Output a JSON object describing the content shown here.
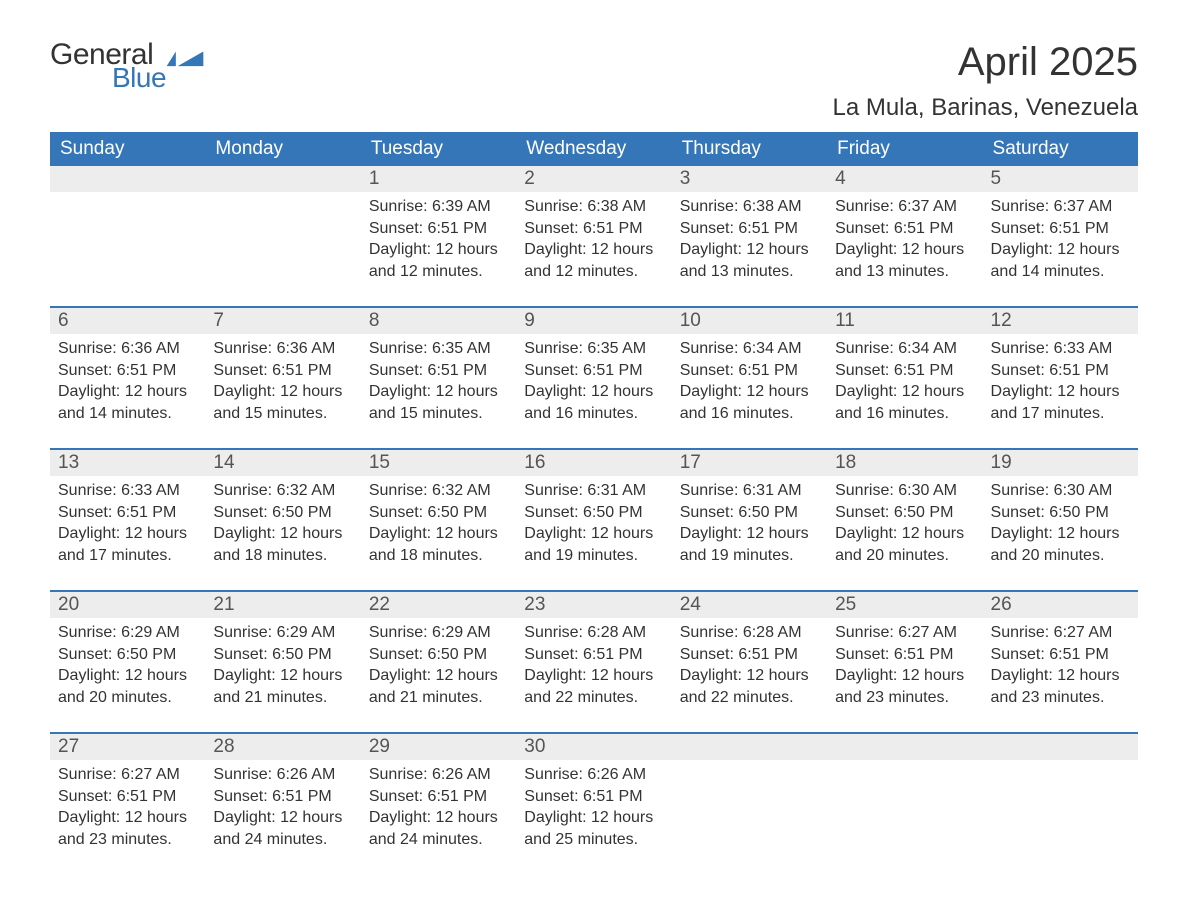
{
  "brand": {
    "line1": "General",
    "line2": "Blue",
    "flag_color": "#3576b8"
  },
  "title": "April 2025",
  "location": "La Mula, Barinas, Venezuela",
  "colors": {
    "header_bg": "#3576b8",
    "header_text": "#ffffff",
    "daynum_bg": "#ededed",
    "text": "#333333",
    "week_border": "#3576b8",
    "background": "#ffffff"
  },
  "day_headers": [
    "Sunday",
    "Monday",
    "Tuesday",
    "Wednesday",
    "Thursday",
    "Friday",
    "Saturday"
  ],
  "weeks": [
    [
      {
        "num": "",
        "sunrise": "",
        "sunset": "",
        "daylight1": "",
        "daylight2": ""
      },
      {
        "num": "",
        "sunrise": "",
        "sunset": "",
        "daylight1": "",
        "daylight2": ""
      },
      {
        "num": "1",
        "sunrise": "Sunrise: 6:39 AM",
        "sunset": "Sunset: 6:51 PM",
        "daylight1": "Daylight: 12 hours",
        "daylight2": "and 12 minutes."
      },
      {
        "num": "2",
        "sunrise": "Sunrise: 6:38 AM",
        "sunset": "Sunset: 6:51 PM",
        "daylight1": "Daylight: 12 hours",
        "daylight2": "and 12 minutes."
      },
      {
        "num": "3",
        "sunrise": "Sunrise: 6:38 AM",
        "sunset": "Sunset: 6:51 PM",
        "daylight1": "Daylight: 12 hours",
        "daylight2": "and 13 minutes."
      },
      {
        "num": "4",
        "sunrise": "Sunrise: 6:37 AM",
        "sunset": "Sunset: 6:51 PM",
        "daylight1": "Daylight: 12 hours",
        "daylight2": "and 13 minutes."
      },
      {
        "num": "5",
        "sunrise": "Sunrise: 6:37 AM",
        "sunset": "Sunset: 6:51 PM",
        "daylight1": "Daylight: 12 hours",
        "daylight2": "and 14 minutes."
      }
    ],
    [
      {
        "num": "6",
        "sunrise": "Sunrise: 6:36 AM",
        "sunset": "Sunset: 6:51 PM",
        "daylight1": "Daylight: 12 hours",
        "daylight2": "and 14 minutes."
      },
      {
        "num": "7",
        "sunrise": "Sunrise: 6:36 AM",
        "sunset": "Sunset: 6:51 PM",
        "daylight1": "Daylight: 12 hours",
        "daylight2": "and 15 minutes."
      },
      {
        "num": "8",
        "sunrise": "Sunrise: 6:35 AM",
        "sunset": "Sunset: 6:51 PM",
        "daylight1": "Daylight: 12 hours",
        "daylight2": "and 15 minutes."
      },
      {
        "num": "9",
        "sunrise": "Sunrise: 6:35 AM",
        "sunset": "Sunset: 6:51 PM",
        "daylight1": "Daylight: 12 hours",
        "daylight2": "and 16 minutes."
      },
      {
        "num": "10",
        "sunrise": "Sunrise: 6:34 AM",
        "sunset": "Sunset: 6:51 PM",
        "daylight1": "Daylight: 12 hours",
        "daylight2": "and 16 minutes."
      },
      {
        "num": "11",
        "sunrise": "Sunrise: 6:34 AM",
        "sunset": "Sunset: 6:51 PM",
        "daylight1": "Daylight: 12 hours",
        "daylight2": "and 16 minutes."
      },
      {
        "num": "12",
        "sunrise": "Sunrise: 6:33 AM",
        "sunset": "Sunset: 6:51 PM",
        "daylight1": "Daylight: 12 hours",
        "daylight2": "and 17 minutes."
      }
    ],
    [
      {
        "num": "13",
        "sunrise": "Sunrise: 6:33 AM",
        "sunset": "Sunset: 6:51 PM",
        "daylight1": "Daylight: 12 hours",
        "daylight2": "and 17 minutes."
      },
      {
        "num": "14",
        "sunrise": "Sunrise: 6:32 AM",
        "sunset": "Sunset: 6:50 PM",
        "daylight1": "Daylight: 12 hours",
        "daylight2": "and 18 minutes."
      },
      {
        "num": "15",
        "sunrise": "Sunrise: 6:32 AM",
        "sunset": "Sunset: 6:50 PM",
        "daylight1": "Daylight: 12 hours",
        "daylight2": "and 18 minutes."
      },
      {
        "num": "16",
        "sunrise": "Sunrise: 6:31 AM",
        "sunset": "Sunset: 6:50 PM",
        "daylight1": "Daylight: 12 hours",
        "daylight2": "and 19 minutes."
      },
      {
        "num": "17",
        "sunrise": "Sunrise: 6:31 AM",
        "sunset": "Sunset: 6:50 PM",
        "daylight1": "Daylight: 12 hours",
        "daylight2": "and 19 minutes."
      },
      {
        "num": "18",
        "sunrise": "Sunrise: 6:30 AM",
        "sunset": "Sunset: 6:50 PM",
        "daylight1": "Daylight: 12 hours",
        "daylight2": "and 20 minutes."
      },
      {
        "num": "19",
        "sunrise": "Sunrise: 6:30 AM",
        "sunset": "Sunset: 6:50 PM",
        "daylight1": "Daylight: 12 hours",
        "daylight2": "and 20 minutes."
      }
    ],
    [
      {
        "num": "20",
        "sunrise": "Sunrise: 6:29 AM",
        "sunset": "Sunset: 6:50 PM",
        "daylight1": "Daylight: 12 hours",
        "daylight2": "and 20 minutes."
      },
      {
        "num": "21",
        "sunrise": "Sunrise: 6:29 AM",
        "sunset": "Sunset: 6:50 PM",
        "daylight1": "Daylight: 12 hours",
        "daylight2": "and 21 minutes."
      },
      {
        "num": "22",
        "sunrise": "Sunrise: 6:29 AM",
        "sunset": "Sunset: 6:50 PM",
        "daylight1": "Daylight: 12 hours",
        "daylight2": "and 21 minutes."
      },
      {
        "num": "23",
        "sunrise": "Sunrise: 6:28 AM",
        "sunset": "Sunset: 6:51 PM",
        "daylight1": "Daylight: 12 hours",
        "daylight2": "and 22 minutes."
      },
      {
        "num": "24",
        "sunrise": "Sunrise: 6:28 AM",
        "sunset": "Sunset: 6:51 PM",
        "daylight1": "Daylight: 12 hours",
        "daylight2": "and 22 minutes."
      },
      {
        "num": "25",
        "sunrise": "Sunrise: 6:27 AM",
        "sunset": "Sunset: 6:51 PM",
        "daylight1": "Daylight: 12 hours",
        "daylight2": "and 23 minutes."
      },
      {
        "num": "26",
        "sunrise": "Sunrise: 6:27 AM",
        "sunset": "Sunset: 6:51 PM",
        "daylight1": "Daylight: 12 hours",
        "daylight2": "and 23 minutes."
      }
    ],
    [
      {
        "num": "27",
        "sunrise": "Sunrise: 6:27 AM",
        "sunset": "Sunset: 6:51 PM",
        "daylight1": "Daylight: 12 hours",
        "daylight2": "and 23 minutes."
      },
      {
        "num": "28",
        "sunrise": "Sunrise: 6:26 AM",
        "sunset": "Sunset: 6:51 PM",
        "daylight1": "Daylight: 12 hours",
        "daylight2": "and 24 minutes."
      },
      {
        "num": "29",
        "sunrise": "Sunrise: 6:26 AM",
        "sunset": "Sunset: 6:51 PM",
        "daylight1": "Daylight: 12 hours",
        "daylight2": "and 24 minutes."
      },
      {
        "num": "30",
        "sunrise": "Sunrise: 6:26 AM",
        "sunset": "Sunset: 6:51 PM",
        "daylight1": "Daylight: 12 hours",
        "daylight2": "and 25 minutes."
      },
      {
        "num": "",
        "sunrise": "",
        "sunset": "",
        "daylight1": "",
        "daylight2": ""
      },
      {
        "num": "",
        "sunrise": "",
        "sunset": "",
        "daylight1": "",
        "daylight2": ""
      },
      {
        "num": "",
        "sunrise": "",
        "sunset": "",
        "daylight1": "",
        "daylight2": ""
      }
    ]
  ]
}
